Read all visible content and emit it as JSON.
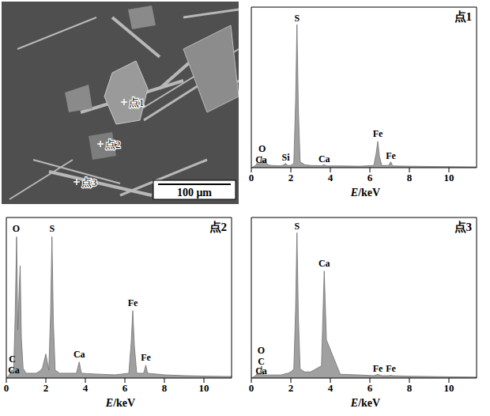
{
  "image": {
    "points": [
      "点1",
      "点2",
      "点3"
    ],
    "scale_bar": "100 μm"
  },
  "chart_data": [
    {
      "type": "area",
      "title": "点1",
      "x_label": "E/keV",
      "color": "#a0a0a0",
      "xlim": [
        0,
        11.4
      ],
      "xticks": [
        0,
        2,
        4,
        6,
        8,
        10
      ],
      "ylim": [
        0,
        110
      ],
      "tick_labels": "x",
      "x": [
        0,
        0.15,
        0.25,
        0.28,
        0.31,
        0.34,
        0.38,
        0.45,
        0.52,
        0.58,
        0.65,
        0.7,
        0.76,
        0.85,
        1.0,
        1.5,
        1.65,
        1.74,
        1.82,
        2.0,
        2.15,
        2.24,
        2.31,
        2.38,
        2.47,
        2.7,
        3.0,
        3.55,
        3.69,
        3.8,
        4.5,
        5.5,
        6.2,
        6.32,
        6.4,
        6.48,
        6.6,
        6.95,
        7.06,
        7.15,
        8,
        9,
        10,
        11,
        11.4
      ],
      "values": [
        0,
        1,
        2,
        3,
        2.5,
        3,
        2,
        4,
        8,
        3,
        4,
        5,
        3,
        2,
        1.5,
        1.2,
        2,
        3,
        1.5,
        1.5,
        3,
        45,
        98,
        40,
        4,
        2,
        1.5,
        1.3,
        2,
        1.2,
        1.2,
        1,
        1.5,
        10,
        18,
        8,
        1.5,
        1.5,
        4,
        1.2,
        1,
        0.8,
        0.7,
        0.6,
        0.5
      ],
      "annotations": [
        {
          "text": "O",
          "x": 0.55,
          "y": 11
        },
        {
          "text": "Ca",
          "x": 0.5,
          "y": 3.5
        },
        {
          "text": "Si",
          "x": 1.74,
          "y": 5
        },
        {
          "text": "S",
          "x": 2.31,
          "y": 100
        },
        {
          "text": "Ca",
          "x": 3.69,
          "y": 4
        },
        {
          "text": "Fe",
          "x": 6.4,
          "y": 21
        },
        {
          "text": "Fe",
          "x": 7.06,
          "y": 6
        }
      ]
    },
    {
      "type": "area",
      "title": "点2",
      "x_label": "E/keV",
      "color": "#a0a0a0",
      "xlim": [
        0,
        11.4
      ],
      "xticks": [
        0,
        2,
        4,
        6,
        8,
        10
      ],
      "ylim": [
        0,
        100
      ],
      "tick_labels": "x",
      "x": [
        0,
        0.15,
        0.25,
        0.28,
        0.31,
        0.34,
        0.38,
        0.45,
        0.52,
        0.58,
        0.65,
        0.7,
        0.76,
        0.85,
        1.0,
        1.5,
        1.65,
        1.74,
        1.82,
        2.0,
        2.15,
        2.24,
        2.31,
        2.38,
        2.47,
        2.7,
        3.0,
        3.55,
        3.69,
        3.8,
        4.5,
        5.5,
        6.2,
        6.32,
        6.4,
        6.48,
        6.6,
        6.95,
        7.06,
        7.15,
        8,
        9,
        10,
        11,
        11.4
      ],
      "values": [
        0,
        2,
        4,
        5,
        4,
        4,
        8,
        40,
        88,
        30,
        55,
        70,
        25,
        6,
        3,
        3,
        4,
        5,
        6,
        15,
        5,
        40,
        88,
        35,
        5,
        3,
        3,
        3,
        10,
        3,
        2.5,
        2,
        3,
        22,
        42,
        20,
        3,
        3,
        8,
        3,
        2,
        1.5,
        1.2,
        1,
        1
      ],
      "annotations": [
        {
          "text": "O",
          "x": 0.5,
          "y": 91
        },
        {
          "text": "S",
          "x": 2.31,
          "y": 91
        },
        {
          "text": "C",
          "x": 0.3,
          "y": 10
        },
        {
          "text": "Ca",
          "x": 0.3,
          "y": 3
        },
        {
          "text": "Ca",
          "x": 3.69,
          "y": 13
        },
        {
          "text": "Fe",
          "x": 6.4,
          "y": 45
        },
        {
          "text": "Fe",
          "x": 7.06,
          "y": 11
        }
      ]
    },
    {
      "type": "area",
      "title": "点3",
      "x_label": "E/keV",
      "color": "#a0a0a0",
      "xlim": [
        0,
        11.4
      ],
      "xticks": [
        0,
        2,
        4,
        6,
        8,
        10
      ],
      "ylim": [
        0,
        105
      ],
      "tick_labels": "x",
      "x": [
        0,
        0.15,
        0.25,
        0.28,
        0.31,
        0.34,
        0.38,
        0.45,
        0.52,
        0.58,
        0.65,
        0.7,
        0.76,
        0.85,
        1.0,
        1.5,
        1.65,
        1.74,
        1.82,
        2.0,
        2.15,
        2.24,
        2.31,
        2.38,
        2.47,
        2.7,
        3.0,
        3.55,
        3.69,
        3.8,
        4.5,
        5.5,
        6.2,
        6.32,
        6.4,
        6.48,
        6.6,
        6.95,
        7.06,
        7.15,
        8,
        9,
        10,
        11,
        11.4
      ],
      "values": [
        0,
        1,
        2,
        3,
        2,
        2.5,
        2,
        4,
        8,
        3,
        2,
        2,
        2,
        2,
        2,
        2,
        2.5,
        3,
        3,
        4,
        6,
        45,
        95,
        40,
        6,
        4,
        4,
        8,
        70,
        25,
        2.5,
        2,
        1.5,
        2,
        2.5,
        2,
        1.5,
        1.5,
        1.8,
        1.5,
        1.2,
        1,
        0.8,
        0.7,
        0.6
      ],
      "annotations": [
        {
          "text": "S",
          "x": 2.31,
          "y": 97
        },
        {
          "text": "Ca",
          "x": 3.69,
          "y": 73
        },
        {
          "text": "O",
          "x": 0.5,
          "y": 16
        },
        {
          "text": "C",
          "x": 0.5,
          "y": 9
        },
        {
          "text": "Ca",
          "x": 0.5,
          "y": 2.5
        },
        {
          "text": "Fe",
          "x": 6.4,
          "y": 4
        },
        {
          "text": "Fe",
          "x": 7.06,
          "y": 4
        }
      ]
    }
  ]
}
